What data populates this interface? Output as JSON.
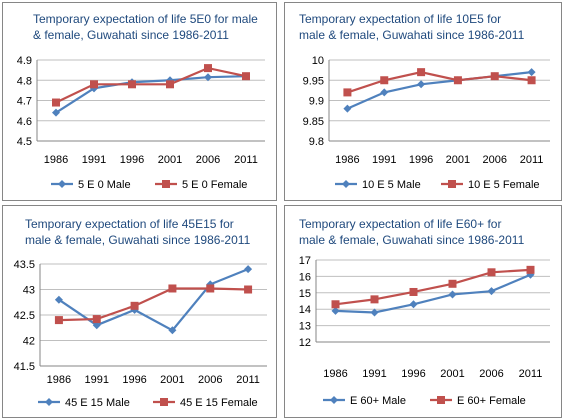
{
  "chart_data": [
    {
      "type": "line",
      "title_lines": [
        "Temporary expectation of life 5E0 for male",
        "& female, Guwahati since 1986-2011"
      ],
      "categories": [
        "1986",
        "1991",
        "1996",
        "2001",
        "2006",
        "2011"
      ],
      "ylim": [
        4.5,
        4.9
      ],
      "yticks": [
        "4.5",
        "4.6",
        "4.7",
        "4.8",
        "4.9"
      ],
      "grid": true,
      "legend": "bottom",
      "series": [
        {
          "name": "5 E 0 Male",
          "color": "#4f81bd",
          "marker": "diamond",
          "values": [
            4.64,
            4.76,
            4.79,
            4.8,
            4.815,
            4.82
          ]
        },
        {
          "name": "5 E 0 Female",
          "color": "#c0504d",
          "marker": "square",
          "values": [
            4.69,
            4.78,
            4.78,
            4.78,
            4.86,
            4.82
          ]
        }
      ]
    },
    {
      "type": "line",
      "title_lines": [
        "Temporary expectation of life 10E5 for",
        "male & female, Guwahati since 1986-2011"
      ],
      "categories": [
        "1986",
        "1991",
        "1996",
        "2001",
        "2006",
        "2011"
      ],
      "ylim": [
        9.8,
        10
      ],
      "yticks": [
        "9.8",
        "9.85",
        "9.9",
        "9.95",
        "10"
      ],
      "grid": true,
      "legend": "bottom",
      "series": [
        {
          "name": "10 E 5 Male",
          "color": "#4f81bd",
          "marker": "diamond",
          "values": [
            9.88,
            9.92,
            9.94,
            9.95,
            9.96,
            9.97
          ]
        },
        {
          "name": "10 E 5 Female",
          "color": "#c0504d",
          "marker": "square",
          "values": [
            9.92,
            9.95,
            9.97,
            9.95,
            9.96,
            9.95
          ]
        }
      ]
    },
    {
      "type": "line",
      "title_lines": [
        "Temporary expectation of life 45E15 for",
        "male & female, Guwahati since 1986-2011"
      ],
      "categories": [
        "1986",
        "1991",
        "1996",
        "2001",
        "2006",
        "2011"
      ],
      "ylim": [
        41.5,
        43.5
      ],
      "yticks": [
        "41.5",
        "42",
        "42.5",
        "43",
        "43.5"
      ],
      "grid": true,
      "legend": "bottom",
      "series": [
        {
          "name": "45 E 15 Male",
          "color": "#4f81bd",
          "marker": "diamond",
          "values": [
            42.8,
            42.3,
            42.6,
            42.2,
            43.1,
            43.4
          ]
        },
        {
          "name": "45 E 15 Female",
          "color": "#c0504d",
          "marker": "square",
          "values": [
            42.4,
            42.42,
            42.68,
            43.02,
            43.02,
            43.0
          ]
        }
      ]
    },
    {
      "type": "line",
      "title_lines": [
        "Temporary expectation of life E60+ for",
        "male & female, Guwahati since 1986-2011"
      ],
      "categories": [
        "1986",
        "1991",
        "1996",
        "2001",
        "2006",
        "2011"
      ],
      "ylim": [
        12,
        17
      ],
      "yticks": [
        "12",
        "13",
        "14",
        "15",
        "16",
        "17"
      ],
      "grid": true,
      "legend": "bottom",
      "series": [
        {
          "name": "E 60+ Male",
          "color": "#4f81bd",
          "marker": "diamond",
          "values": [
            13.9,
            13.8,
            14.3,
            14.9,
            15.1,
            16.1
          ]
        },
        {
          "name": "E 60+ Female",
          "color": "#c0504d",
          "marker": "square",
          "values": [
            14.3,
            14.6,
            15.05,
            15.55,
            16.25,
            16.4
          ]
        }
      ]
    }
  ]
}
